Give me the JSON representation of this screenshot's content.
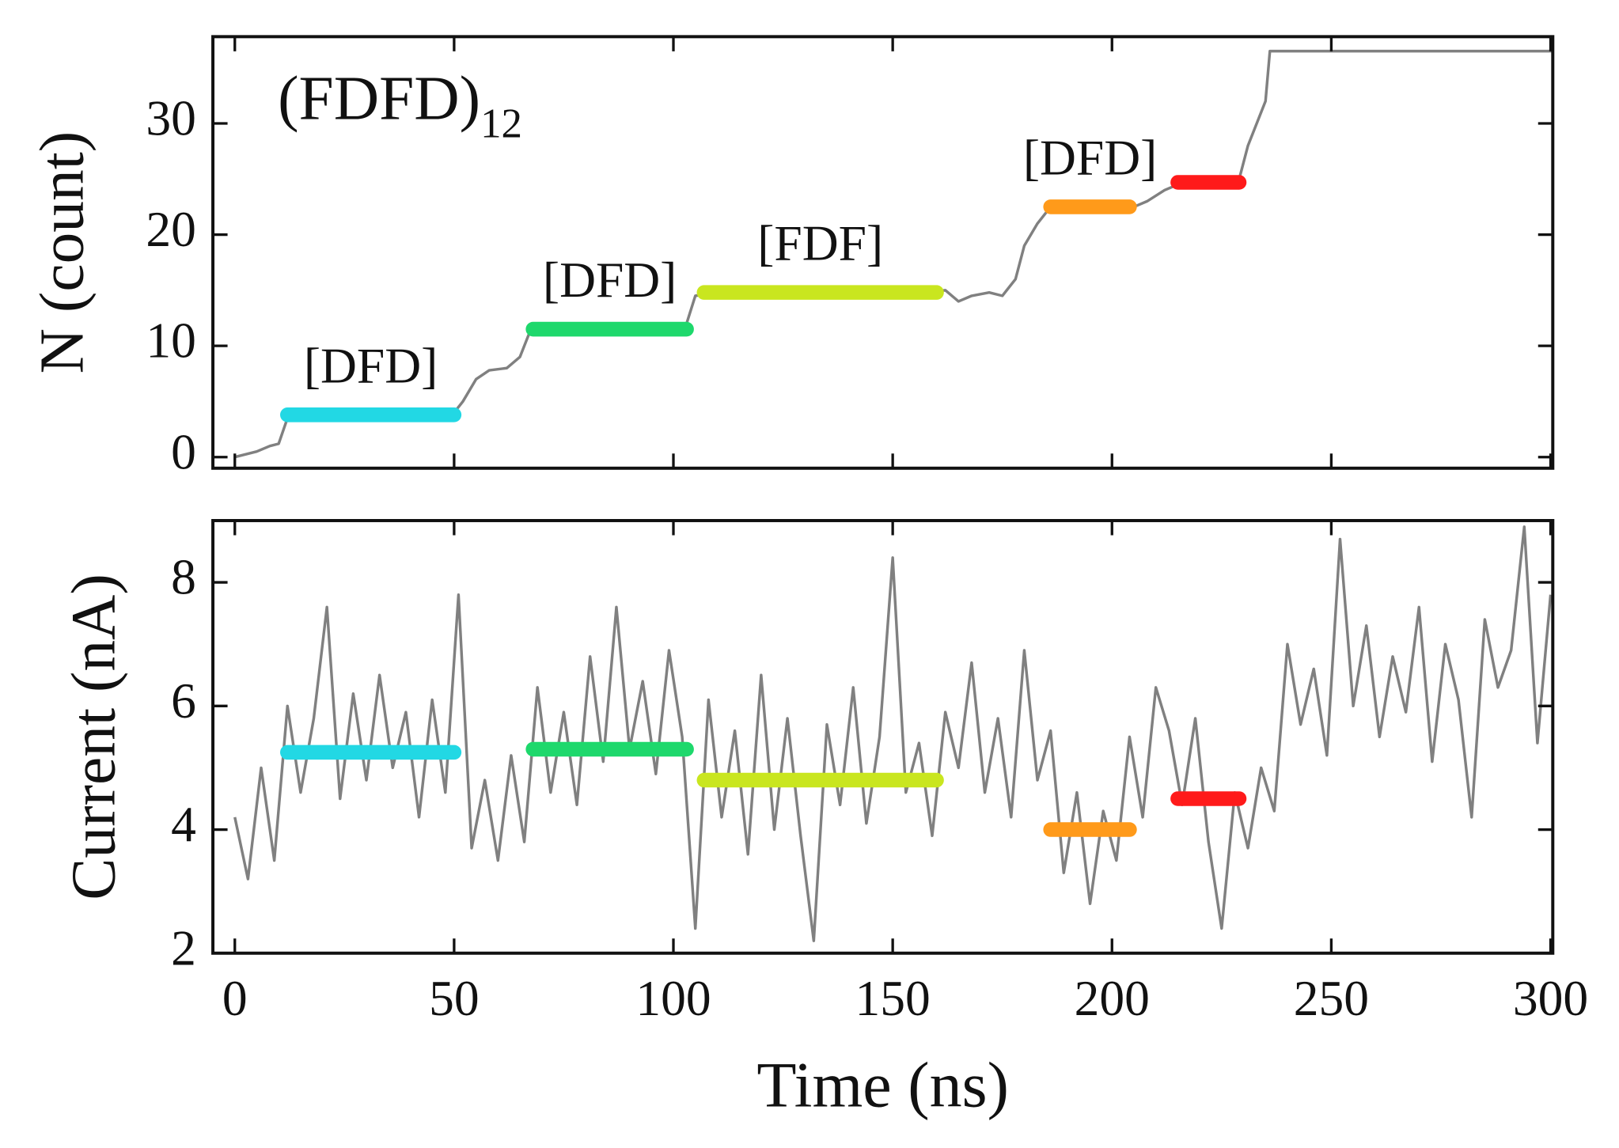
{
  "chart_data": [
    {
      "type": "line",
      "ylabel": "N (count)",
      "annotation": "(FDFD)",
      "annotation_subscript": "12",
      "xlim": [
        -5,
        300.5
      ],
      "xticks": [
        0,
        50,
        100,
        150,
        200,
        250,
        300
      ],
      "show_xtick_labels": false,
      "ylim": [
        -1,
        37.8
      ],
      "yticks": [
        0,
        10,
        20,
        30
      ],
      "series": [
        {
          "color": "#808080",
          "x": [
            0,
            5,
            8,
            10,
            12,
            15,
            50,
            52,
            55,
            58,
            62,
            65,
            67,
            70,
            100,
            103,
            105,
            110,
            158,
            162,
            165,
            168,
            172,
            175,
            178,
            180,
            183,
            186,
            205,
            208,
            212,
            215,
            229,
            231,
            233,
            235,
            236,
            300.5
          ],
          "values": [
            0,
            0.5,
            1,
            1.2,
            3.5,
            3.6,
            4,
            5,
            7,
            7.8,
            8,
            9,
            11,
            11.5,
            11.5,
            12,
            14.5,
            14.8,
            14.8,
            15,
            14,
            14.5,
            14.8,
            14.5,
            16,
            19,
            21,
            22.5,
            22.5,
            23,
            24,
            24.5,
            25,
            28,
            30,
            32,
            36.5,
            36.5
          ]
        }
      ],
      "segments": [
        {
          "label": "[DFD]",
          "start": 12,
          "end": 50,
          "value": 3.8,
          "color": "#22d8e4"
        },
        {
          "label": "[DFD]",
          "start": 68,
          "end": 103,
          "value": 11.5,
          "color": "#1ed86c"
        },
        {
          "label": "[FDF]",
          "start": 107,
          "end": 160,
          "value": 14.8,
          "color": "#c9e61f"
        },
        {
          "label": "[DFD]",
          "start": 186,
          "end": 204,
          "value": 22.5,
          "color": "#ff9a1a"
        },
        {
          "start": 215,
          "end": 229,
          "value": 24.7,
          "color": "#ff1a1a"
        }
      ]
    },
    {
      "type": "line",
      "xlabel": "Time (ns)",
      "ylabel": "Current (nA)",
      "xlim": [
        -5,
        300.5
      ],
      "xticks": [
        0,
        50,
        100,
        150,
        200,
        250,
        300
      ],
      "show_xtick_labels": true,
      "ylim": [
        2,
        9
      ],
      "yticks": [
        2,
        4,
        6,
        8
      ],
      "series": [
        {
          "color": "#808080",
          "x": [
            0,
            3,
            6,
            9,
            12,
            15,
            18,
            21,
            24,
            27,
            30,
            33,
            36,
            39,
            42,
            45,
            48,
            51,
            54,
            57,
            60,
            63,
            66,
            69,
            72,
            75,
            78,
            81,
            84,
            87,
            90,
            93,
            96,
            99,
            102,
            105,
            108,
            111,
            114,
            117,
            120,
            123,
            126,
            129,
            132,
            135,
            138,
            141,
            144,
            147,
            150,
            153,
            156,
            159,
            162,
            165,
            168,
            171,
            174,
            177,
            180,
            183,
            186,
            189,
            192,
            195,
            198,
            201,
            204,
            207,
            210,
            213,
            216,
            219,
            222,
            225,
            228,
            231,
            234,
            237,
            240,
            243,
            246,
            249,
            252,
            255,
            258,
            261,
            264,
            267,
            270,
            273,
            276,
            279,
            282,
            285,
            288,
            291,
            294,
            297,
            300
          ],
          "values": [
            4.2,
            3.2,
            5.0,
            3.5,
            6.0,
            4.6,
            5.8,
            7.6,
            4.5,
            6.2,
            4.8,
            6.5,
            5.0,
            5.9,
            4.2,
            6.1,
            4.6,
            7.8,
            3.7,
            4.8,
            3.5,
            5.2,
            3.8,
            6.3,
            4.6,
            5.9,
            4.4,
            6.8,
            5.1,
            7.6,
            5.3,
            6.4,
            4.9,
            6.9,
            5.5,
            2.4,
            6.1,
            4.2,
            5.6,
            3.6,
            6.5,
            4.0,
            5.8,
            3.9,
            2.2,
            5.7,
            4.4,
            6.3,
            4.1,
            5.5,
            8.4,
            4.6,
            5.4,
            3.9,
            5.9,
            5.0,
            6.7,
            4.6,
            5.8,
            4.2,
            6.9,
            4.8,
            5.6,
            3.3,
            4.6,
            2.8,
            4.3,
            3.5,
            5.5,
            4.2,
            6.3,
            5.6,
            4.4,
            5.8,
            3.8,
            2.4,
            4.6,
            3.7,
            5.0,
            4.3,
            7.0,
            5.7,
            6.6,
            5.2,
            8.7,
            6.0,
            7.3,
            5.5,
            6.8,
            5.9,
            7.6,
            5.1,
            7.0,
            6.1,
            4.2,
            7.4,
            6.3,
            6.9,
            8.9,
            5.4,
            7.8
          ]
        }
      ],
      "segments": [
        {
          "start": 12,
          "end": 50,
          "value": 5.25,
          "color": "#22d8e4"
        },
        {
          "start": 68,
          "end": 103,
          "value": 5.3,
          "color": "#1ed86c"
        },
        {
          "start": 107,
          "end": 160,
          "value": 4.8,
          "color": "#c9e61f"
        },
        {
          "start": 186,
          "end": 204,
          "value": 4.0,
          "color": "#ff9a1a"
        },
        {
          "start": 215,
          "end": 229,
          "value": 4.5,
          "color": "#ff1a1a"
        }
      ]
    }
  ]
}
